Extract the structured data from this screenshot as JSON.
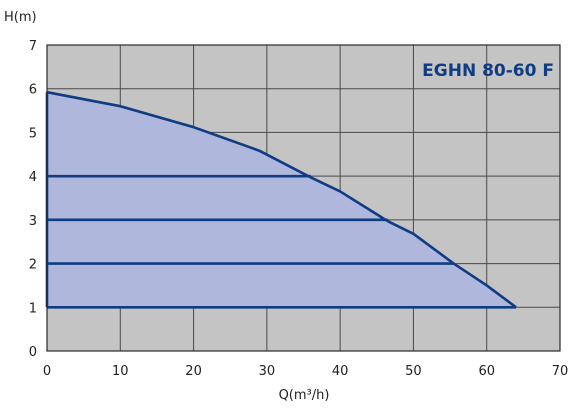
{
  "chart_data": {
    "type": "line",
    "title": "EGHN 80-60 F",
    "xlabel": "Q(m³/h)",
    "ylabel": "H(m)",
    "xlim": [
      0,
      70
    ],
    "ylim": [
      0,
      7
    ],
    "xticks": [
      "0",
      "10",
      "20",
      "30",
      "40",
      "50",
      "60",
      "70"
    ],
    "yticks": [
      "0",
      "1",
      "2",
      "3",
      "4",
      "5",
      "6",
      "7"
    ],
    "grid": true,
    "series": [
      {
        "values": [
          {
            "x": 0,
            "y": 5.92
          },
          {
            "x": 10,
            "y": 5.6
          },
          {
            "x": 20,
            "y": 5.12
          },
          {
            "x": 29,
            "y": 4.58
          },
          {
            "x": 36,
            "y": 3.97
          },
          {
            "x": 40,
            "y": 3.65
          },
          {
            "x": 46.5,
            "y": 2.97
          },
          {
            "x": 50,
            "y": 2.68
          },
          {
            "x": 55.5,
            "y": 2.0
          },
          {
            "x": 60,
            "y": 1.5
          },
          {
            "x": 64,
            "y": 1.0
          }
        ]
      }
    ],
    "operating_lines": [
      {
        "y": 4,
        "x_start": 0,
        "x_end": 36
      },
      {
        "y": 3,
        "x_start": 0,
        "x_end": 46.5
      },
      {
        "y": 2,
        "x_start": 0,
        "x_end": 55.5
      },
      {
        "y": 1,
        "x_start": 0,
        "x_end": 64
      }
    ],
    "colors": {
      "plot_background": "#c4c4c4",
      "fill": "#afb7dc",
      "line": "#0f3c82",
      "title": "#0f3c82",
      "grid": "#4a4a4a"
    }
  }
}
